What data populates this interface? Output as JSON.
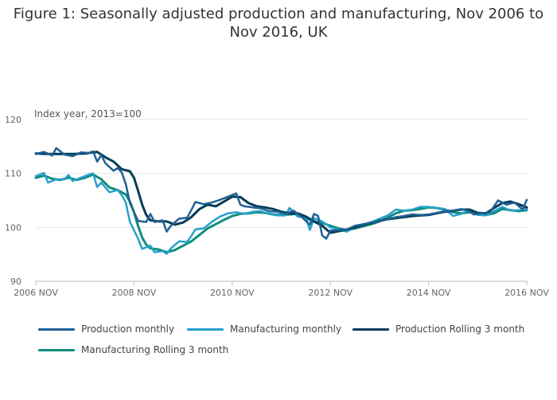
{
  "title_lines": [
    "Figure 1: Seasonally adjusted production and manufacturing, Nov 2006 to",
    "Nov 2016, UK"
  ],
  "chart_data": {
    "type": "line",
    "title": "Figure 1: Seasonally adjusted production and manufacturing, Nov 2006 to Nov 2016, UK",
    "ylabel": "Index year, 2013=100",
    "xlabel": "",
    "ylim": [
      90,
      120
    ],
    "yticks": [
      90,
      100,
      110,
      120
    ],
    "xlim": [
      "2006-11",
      "2016-11"
    ],
    "xticks": [
      {
        "date": "2006-11",
        "label": "2006 NOV"
      },
      {
        "date": "2008-11",
        "label": "2008 NOV"
      },
      {
        "date": "2010-11",
        "label": "2010 NOV"
      },
      {
        "date": "2012-11",
        "label": "2012 NOV"
      },
      {
        "date": "2014-11",
        "label": "2014 NOV"
      },
      {
        "date": "2016-11",
        "label": "2016 NOV"
      }
    ],
    "grid": true,
    "legend_position": "bottom",
    "series": [
      {
        "name": "Production monthly",
        "color": "#206095",
        "width": 2.5,
        "points": [
          [
            "2006-11",
            113.6
          ],
          [
            "2007-01",
            114.0
          ],
          [
            "2007-03",
            113.3
          ],
          [
            "2007-04",
            114.7
          ],
          [
            "2007-06",
            113.5
          ],
          [
            "2007-08",
            113.2
          ],
          [
            "2007-10",
            113.9
          ],
          [
            "2007-12",
            113.8
          ],
          [
            "2008-01",
            114.1
          ],
          [
            "2008-02",
            112.2
          ],
          [
            "2008-03",
            113.4
          ],
          [
            "2008-04",
            111.9
          ],
          [
            "2008-06",
            110.5
          ],
          [
            "2008-07",
            111.0
          ],
          [
            "2008-08",
            110.2
          ],
          [
            "2008-09",
            108.0
          ],
          [
            "2008-10",
            104.5
          ],
          [
            "2008-12",
            101.2
          ],
          [
            "2009-02",
            101.0
          ],
          [
            "2009-03",
            102.5
          ],
          [
            "2009-04",
            101.0
          ],
          [
            "2009-06",
            101.3
          ],
          [
            "2009-07",
            99.2
          ],
          [
            "2009-08",
            100.3
          ],
          [
            "2009-10",
            101.6
          ],
          [
            "2009-12",
            101.8
          ],
          [
            "2010-01",
            103.2
          ],
          [
            "2010-02",
            104.7
          ],
          [
            "2010-04",
            104.3
          ],
          [
            "2010-06",
            104.6
          ],
          [
            "2010-08",
            105.1
          ],
          [
            "2010-10",
            105.7
          ],
          [
            "2010-12",
            106.3
          ],
          [
            "2011-01",
            104.2
          ],
          [
            "2011-02",
            103.9
          ],
          [
            "2011-04",
            103.7
          ],
          [
            "2011-06",
            103.5
          ],
          [
            "2011-08",
            103.0
          ],
          [
            "2011-10",
            102.9
          ],
          [
            "2011-12",
            102.5
          ],
          [
            "2012-02",
            103.1
          ],
          [
            "2012-04",
            101.9
          ],
          [
            "2012-06",
            100.5
          ],
          [
            "2012-07",
            102.5
          ],
          [
            "2012-08",
            102.1
          ],
          [
            "2012-09",
            98.5
          ],
          [
            "2012-10",
            97.9
          ],
          [
            "2012-11",
            99.4
          ],
          [
            "2013-01",
            99.5
          ],
          [
            "2013-03",
            99.6
          ],
          [
            "2013-05",
            100.3
          ],
          [
            "2013-07",
            100.6
          ],
          [
            "2013-09",
            100.9
          ],
          [
            "2013-11",
            101.1
          ],
          [
            "2014-01",
            101.5
          ],
          [
            "2014-03",
            101.9
          ],
          [
            "2014-05",
            102.1
          ],
          [
            "2014-07",
            102.4
          ],
          [
            "2014-09",
            102.3
          ],
          [
            "2014-11",
            102.4
          ],
          [
            "2015-01",
            102.7
          ],
          [
            "2015-03",
            103.0
          ],
          [
            "2015-05",
            103.1
          ],
          [
            "2015-07",
            103.4
          ],
          [
            "2015-09",
            103.0
          ],
          [
            "2015-10",
            102.4
          ],
          [
            "2015-12",
            102.6
          ],
          [
            "2016-02",
            102.8
          ],
          [
            "2016-04",
            105.0
          ],
          [
            "2016-06",
            104.2
          ],
          [
            "2016-08",
            104.6
          ],
          [
            "2016-10",
            103.3
          ],
          [
            "2016-11",
            105.1
          ]
        ]
      },
      {
        "name": "Manufacturing monthly",
        "color": "#27a0cc",
        "width": 2.5,
        "points": [
          [
            "2006-11",
            109.5
          ],
          [
            "2007-01",
            110.1
          ],
          [
            "2007-02",
            108.3
          ],
          [
            "2007-04",
            108.9
          ],
          [
            "2007-06",
            108.9
          ],
          [
            "2007-07",
            109.7
          ],
          [
            "2007-08",
            108.6
          ],
          [
            "2007-10",
            109.2
          ],
          [
            "2007-12",
            109.8
          ],
          [
            "2008-01",
            110.0
          ],
          [
            "2008-02",
            107.5
          ],
          [
            "2008-03",
            108.3
          ],
          [
            "2008-05",
            106.5
          ],
          [
            "2008-07",
            106.9
          ],
          [
            "2008-08",
            106.0
          ],
          [
            "2008-09",
            104.6
          ],
          [
            "2008-10",
            101.0
          ],
          [
            "2008-12",
            97.9
          ],
          [
            "2009-01",
            96.0
          ],
          [
            "2009-03",
            96.6
          ],
          [
            "2009-04",
            95.4
          ],
          [
            "2009-06",
            95.6
          ],
          [
            "2009-07",
            95.1
          ],
          [
            "2009-08",
            96.1
          ],
          [
            "2009-10",
            97.4
          ],
          [
            "2009-12",
            97.3
          ],
          [
            "2010-01",
            98.4
          ],
          [
            "2010-02",
            99.6
          ],
          [
            "2010-04",
            99.8
          ],
          [
            "2010-06",
            101.0
          ],
          [
            "2010-08",
            102.0
          ],
          [
            "2010-10",
            102.6
          ],
          [
            "2010-12",
            102.8
          ],
          [
            "2011-02",
            102.5
          ],
          [
            "2011-04",
            102.9
          ],
          [
            "2011-06",
            103.0
          ],
          [
            "2011-08",
            102.5
          ],
          [
            "2011-10",
            102.2
          ],
          [
            "2011-12",
            102.2
          ],
          [
            "2012-01",
            103.6
          ],
          [
            "2012-03",
            102.0
          ],
          [
            "2012-05",
            101.8
          ],
          [
            "2012-06",
            99.5
          ],
          [
            "2012-07",
            101.7
          ],
          [
            "2012-09",
            101.1
          ],
          [
            "2012-11",
            100.0
          ],
          [
            "2013-01",
            99.6
          ],
          [
            "2013-03",
            99.2
          ],
          [
            "2013-05",
            100.0
          ],
          [
            "2013-07",
            100.5
          ],
          [
            "2013-09",
            101.0
          ],
          [
            "2013-11",
            101.6
          ],
          [
            "2014-01",
            102.2
          ],
          [
            "2014-03",
            103.3
          ],
          [
            "2014-05",
            103.1
          ],
          [
            "2014-07",
            103.3
          ],
          [
            "2014-09",
            103.8
          ],
          [
            "2014-11",
            103.8
          ],
          [
            "2015-01",
            103.6
          ],
          [
            "2015-03",
            103.4
          ],
          [
            "2015-05",
            102.1
          ],
          [
            "2015-07",
            102.5
          ],
          [
            "2015-09",
            103.2
          ],
          [
            "2015-11",
            102.3
          ],
          [
            "2016-01",
            102.2
          ],
          [
            "2016-03",
            103.0
          ],
          [
            "2016-05",
            103.8
          ],
          [
            "2016-07",
            103.1
          ],
          [
            "2016-09",
            103.2
          ],
          [
            "2016-11",
            103.4
          ]
        ]
      },
      {
        "name": "Production Rolling 3 month",
        "color": "#003c57",
        "width": 3,
        "points": [
          [
            "2006-11",
            113.7
          ],
          [
            "2007-02",
            113.6
          ],
          [
            "2007-05",
            113.6
          ],
          [
            "2007-08",
            113.6
          ],
          [
            "2007-11",
            113.7
          ],
          [
            "2008-02",
            114.0
          ],
          [
            "2008-04",
            113.0
          ],
          [
            "2008-06",
            112.2
          ],
          [
            "2008-08",
            110.8
          ],
          [
            "2008-10",
            110.4
          ],
          [
            "2008-11",
            109.2
          ],
          [
            "2008-12",
            106.8
          ],
          [
            "2009-01",
            104.2
          ],
          [
            "2009-02",
            102.3
          ],
          [
            "2009-03",
            101.3
          ],
          [
            "2009-05",
            101.1
          ],
          [
            "2009-07",
            101.1
          ],
          [
            "2009-09",
            100.5
          ],
          [
            "2009-11",
            100.9
          ],
          [
            "2010-01",
            101.9
          ],
          [
            "2010-03",
            103.4
          ],
          [
            "2010-05",
            104.2
          ],
          [
            "2010-07",
            103.9
          ],
          [
            "2010-09",
            104.8
          ],
          [
            "2010-11",
            105.7
          ],
          [
            "2011-01",
            105.6
          ],
          [
            "2011-03",
            104.5
          ],
          [
            "2011-05",
            103.9
          ],
          [
            "2011-07",
            103.7
          ],
          [
            "2011-09",
            103.4
          ],
          [
            "2011-11",
            102.9
          ],
          [
            "2012-01",
            102.6
          ],
          [
            "2012-03",
            102.6
          ],
          [
            "2012-05",
            102.0
          ],
          [
            "2012-07",
            101.1
          ],
          [
            "2012-09",
            100.3
          ],
          [
            "2012-11",
            99.0
          ],
          [
            "2013-01",
            99.3
          ],
          [
            "2013-03",
            99.6
          ],
          [
            "2013-05",
            100.0
          ],
          [
            "2013-07",
            100.5
          ],
          [
            "2013-09",
            100.8
          ],
          [
            "2013-11",
            101.2
          ],
          [
            "2014-01",
            101.5
          ],
          [
            "2014-03",
            101.7
          ],
          [
            "2014-05",
            101.9
          ],
          [
            "2014-07",
            102.1
          ],
          [
            "2014-09",
            102.2
          ],
          [
            "2014-11",
            102.3
          ],
          [
            "2015-01",
            102.6
          ],
          [
            "2015-03",
            102.9
          ],
          [
            "2015-05",
            103.1
          ],
          [
            "2015-07",
            103.3
          ],
          [
            "2015-09",
            103.3
          ],
          [
            "2015-11",
            102.7
          ],
          [
            "2016-01",
            102.6
          ],
          [
            "2016-03",
            103.6
          ],
          [
            "2016-05",
            104.5
          ],
          [
            "2016-07",
            104.8
          ],
          [
            "2016-09",
            104.3
          ],
          [
            "2016-11",
            103.7
          ]
        ]
      },
      {
        "name": "Manufacturing Rolling 3 month",
        "color": "#118c7b",
        "width": 3,
        "points": [
          [
            "2006-11",
            109.2
          ],
          [
            "2007-01",
            109.6
          ],
          [
            "2007-03",
            109.0
          ],
          [
            "2007-05",
            108.8
          ],
          [
            "2007-07",
            109.2
          ],
          [
            "2007-09",
            108.8
          ],
          [
            "2007-11",
            109.2
          ],
          [
            "2008-01",
            109.8
          ],
          [
            "2008-03",
            108.9
          ],
          [
            "2008-05",
            107.4
          ],
          [
            "2008-07",
            106.9
          ],
          [
            "2008-09",
            106.1
          ],
          [
            "2008-10",
            104.8
          ],
          [
            "2008-11",
            102.8
          ],
          [
            "2008-12",
            100.3
          ],
          [
            "2009-01",
            98.1
          ],
          [
            "2009-02",
            96.8
          ],
          [
            "2009-03",
            96.1
          ],
          [
            "2009-05",
            95.9
          ],
          [
            "2009-07",
            95.4
          ],
          [
            "2009-09",
            95.8
          ],
          [
            "2009-11",
            96.6
          ],
          [
            "2010-01",
            97.4
          ],
          [
            "2010-03",
            98.6
          ],
          [
            "2010-05",
            99.8
          ],
          [
            "2010-07",
            100.6
          ],
          [
            "2010-09",
            101.4
          ],
          [
            "2010-11",
            102.1
          ],
          [
            "2011-01",
            102.5
          ],
          [
            "2011-03",
            102.6
          ],
          [
            "2011-05",
            102.8
          ],
          [
            "2011-07",
            102.7
          ],
          [
            "2011-09",
            102.4
          ],
          [
            "2011-11",
            102.3
          ],
          [
            "2012-01",
            102.4
          ],
          [
            "2012-03",
            102.5
          ],
          [
            "2012-05",
            101.7
          ],
          [
            "2012-07",
            101.1
          ],
          [
            "2012-09",
            100.8
          ],
          [
            "2012-11",
            100.3
          ],
          [
            "2013-01",
            99.8
          ],
          [
            "2013-03",
            99.5
          ],
          [
            "2013-05",
            99.8
          ],
          [
            "2013-07",
            100.2
          ],
          [
            "2013-09",
            100.6
          ],
          [
            "2013-11",
            101.1
          ],
          [
            "2014-01",
            101.8
          ],
          [
            "2014-03",
            102.6
          ],
          [
            "2014-05",
            103.1
          ],
          [
            "2014-07",
            103.2
          ],
          [
            "2014-09",
            103.4
          ],
          [
            "2014-11",
            103.7
          ],
          [
            "2015-01",
            103.6
          ],
          [
            "2015-03",
            103.3
          ],
          [
            "2015-05",
            102.8
          ],
          [
            "2015-07",
            102.6
          ],
          [
            "2015-09",
            102.8
          ],
          [
            "2015-11",
            102.6
          ],
          [
            "2016-01",
            102.3
          ],
          [
            "2016-03",
            102.6
          ],
          [
            "2016-05",
            103.4
          ],
          [
            "2016-07",
            103.2
          ],
          [
            "2016-09",
            103.0
          ],
          [
            "2016-11",
            103.2
          ]
        ]
      }
    ]
  }
}
